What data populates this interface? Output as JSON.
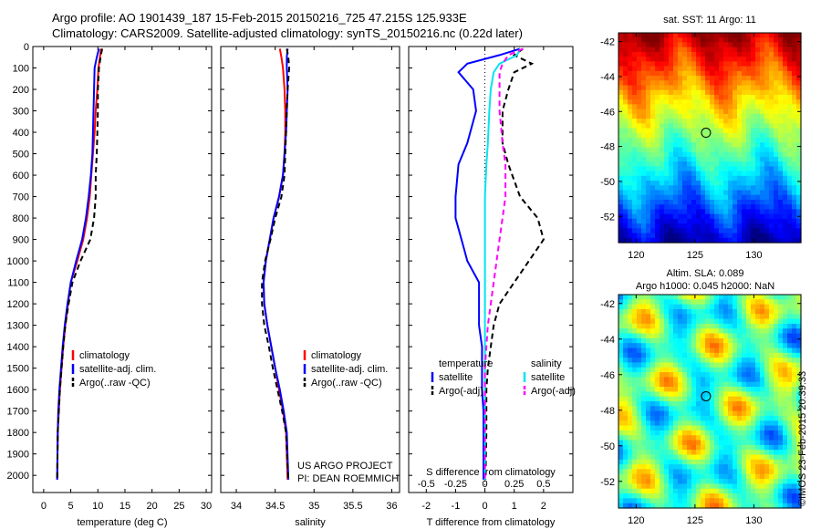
{
  "header": {
    "title_line1": "Argo profile: AO 1901439_187 15-Feb-2015 20150216_725 47.215S 125.933E",
    "title_line2": "Climatology: CARS2009. Satellite-adjusted climatology: synTS_20150216.nc (0.22d later)"
  },
  "credit": {
    "project": "US ARGO PROJECT",
    "pi": "PI: DEAN ROEMMICH",
    "imos_stamp": "©IMOS 23-Feb-2015 20:39:33"
  },
  "chart_data": [
    {
      "type": "line",
      "id": "temperature",
      "xlabel": "temperature (deg C)",
      "ylabel": "",
      "xlim": [
        -2,
        31
      ],
      "ylim": [
        2080,
        0
      ],
      "x_ticks": [
        "0",
        "5",
        "10",
        "15",
        "20",
        "25",
        "30"
      ],
      "y_ticks": [
        "0",
        "100",
        "200",
        "300",
        "400",
        "500",
        "600",
        "700",
        "800",
        "900",
        "1000",
        "1100",
        "1200",
        "1300",
        "1400",
        "1500",
        "1600",
        "1700",
        "1800",
        "1900",
        "2000"
      ],
      "legend": [
        "climatology",
        "satellite-adj. clim.",
        "Argo(..raw -QC)"
      ],
      "series": [
        {
          "name": "climatology",
          "color": "#ff0000",
          "style": "solid",
          "x": [
            10.6,
            10.4,
            10.1,
            9.9,
            9.6,
            9.4,
            9.1,
            8.8,
            8.5,
            8.0,
            7.3,
            6.2,
            5.0,
            4.5,
            4.0,
            3.6,
            3.3,
            3.0,
            2.8,
            2.6,
            2.5
          ],
          "y": [
            10,
            50,
            100,
            200,
            300,
            400,
            500,
            600,
            700,
            800,
            900,
            1000,
            1100,
            1200,
            1300,
            1400,
            1500,
            1600,
            1700,
            1800,
            2020
          ]
        },
        {
          "name": "satellite-adj. clim.",
          "color": "#0000ff",
          "style": "solid",
          "x": [
            10.2,
            9.8,
            9.4,
            9.3,
            9.2,
            9.1,
            9.0,
            8.7,
            8.3,
            7.8,
            7.1,
            6.0,
            5.0,
            4.4,
            3.9,
            3.5,
            3.2,
            2.9,
            2.7,
            2.6,
            2.5
          ],
          "y": [
            10,
            50,
            100,
            200,
            300,
            400,
            500,
            600,
            700,
            800,
            900,
            1000,
            1100,
            1200,
            1300,
            1400,
            1500,
            1600,
            1700,
            1800,
            2020
          ]
        },
        {
          "name": "Argo(..raw -QC)",
          "color": "#000000",
          "style": "dashed",
          "x": [
            10.8,
            10.5,
            10.2,
            10.0,
            10.0,
            9.9,
            9.8,
            9.6,
            9.6,
            9.3,
            8.6,
            6.8,
            5.3,
            4.6,
            4.0,
            3.6,
            3.3,
            3.0,
            2.8,
            2.6,
            2.5
          ],
          "y": [
            10,
            50,
            100,
            200,
            300,
            400,
            500,
            600,
            700,
            800,
            900,
            1000,
            1100,
            1200,
            1300,
            1400,
            1500,
            1600,
            1700,
            1800,
            2020
          ]
        }
      ]
    },
    {
      "type": "line",
      "id": "salinity",
      "xlabel": "salinity",
      "xlim": [
        33.8,
        36.1
      ],
      "ylim": [
        2080,
        0
      ],
      "x_ticks": [
        "34",
        "34.5",
        "35",
        "35.5",
        "36"
      ],
      "legend": [
        "climatology",
        "satellite-adj. clim.",
        "Argo(..raw -QC)"
      ],
      "series": [
        {
          "name": "climatology",
          "color": "#ff0000",
          "style": "solid",
          "x": [
            34.56,
            34.58,
            34.6,
            34.62,
            34.63,
            34.63,
            34.62,
            34.6,
            34.55,
            34.48,
            34.43,
            34.38,
            34.35,
            34.36,
            34.4,
            34.45,
            34.5,
            34.55,
            34.6,
            34.64,
            34.66
          ],
          "y": [
            10,
            50,
            100,
            200,
            300,
            400,
            500,
            600,
            700,
            800,
            900,
            1000,
            1100,
            1200,
            1300,
            1400,
            1500,
            1600,
            1700,
            1800,
            2020
          ]
        },
        {
          "name": "satellite-adj. clim.",
          "color": "#0000ff",
          "style": "solid",
          "x": [
            34.66,
            34.65,
            34.65,
            34.66,
            34.65,
            34.64,
            34.62,
            34.6,
            34.55,
            34.48,
            34.43,
            34.38,
            34.35,
            34.36,
            34.4,
            34.45,
            34.5,
            34.56,
            34.61,
            34.65,
            34.67
          ],
          "y": [
            10,
            50,
            100,
            200,
            300,
            400,
            500,
            600,
            700,
            800,
            900,
            1000,
            1100,
            1200,
            1300,
            1400,
            1500,
            1600,
            1700,
            1800,
            2020
          ]
        },
        {
          "name": "Argo(..raw -QC)",
          "color": "#000000",
          "style": "dashed",
          "x": [
            34.65,
            34.67,
            34.68,
            34.66,
            34.65,
            34.64,
            34.63,
            34.62,
            34.58,
            34.5,
            34.44,
            34.37,
            34.33,
            34.33,
            34.36,
            34.42,
            34.47,
            34.53,
            34.59,
            34.64,
            34.67
          ],
          "y": [
            10,
            50,
            100,
            200,
            300,
            400,
            500,
            600,
            700,
            800,
            900,
            1000,
            1100,
            1200,
            1300,
            1400,
            1500,
            1600,
            1700,
            1800,
            2020
          ]
        }
      ]
    },
    {
      "type": "line",
      "id": "differences",
      "xlabel": "T difference from climatology",
      "xlabel_top": "S difference from climatology",
      "xlim": [
        -2.6,
        3.0
      ],
      "ylim": [
        2080,
        0
      ],
      "x_ticks": [
        "-2",
        "-1",
        "0",
        "1",
        "2"
      ],
      "x_ticks_top": [
        "-0.5",
        "-0.25",
        "0",
        "0.25",
        "0.5"
      ],
      "legend_titles": [
        "temperature",
        "salinity"
      ],
      "legend": [
        "satellite",
        "Argo(-adj)",
        "satellite",
        "Argo(-adj)"
      ],
      "series": [
        {
          "name": "satellite",
          "group": "temperature",
          "color": "#0000ff",
          "style": "solid",
          "x": [
            1.2,
            0.5,
            -0.6,
            -0.9,
            -0.4,
            -0.3,
            -0.6,
            -0.9,
            -1.0,
            -1.0,
            -0.8,
            -0.6,
            -0.2,
            -0.2,
            -0.2,
            -0.1,
            -0.1,
            -0.1,
            -0.05,
            -0.05,
            -0.05
          ],
          "y": [
            10,
            40,
            80,
            120,
            200,
            300,
            450,
            550,
            700,
            800,
            900,
            1000,
            1100,
            1200,
            1300,
            1400,
            1500,
            1600,
            1700,
            1800,
            2020
          ]
        },
        {
          "name": "Argo(-adj)",
          "group": "temperature",
          "color": "#000000",
          "style": "dashed",
          "x": [
            1.3,
            1.0,
            1.6,
            1.0,
            0.8,
            0.6,
            0.6,
            0.8,
            1.2,
            1.8,
            2.0,
            1.5,
            1.0,
            0.5,
            0.3,
            0.2,
            0.1,
            0.05,
            0.05,
            0.05,
            0.02
          ],
          "y": [
            10,
            40,
            80,
            120,
            200,
            300,
            450,
            550,
            700,
            800,
            900,
            1000,
            1100,
            1200,
            1300,
            1400,
            1500,
            1600,
            1700,
            1800,
            2020
          ]
        },
        {
          "name": "satellite",
          "group": "salinity",
          "color": "#00e5ee",
          "style": "solid",
          "x": [
            1.2,
            1.1,
            0.5,
            0.3,
            0.2,
            0.15,
            0.1,
            0.05,
            0.0,
            0.0,
            0.0,
            0.0,
            0.0,
            0.0,
            0.0,
            0.0,
            0.0,
            0.0,
            0.0,
            0.0,
            0.0
          ],
          "y": [
            10,
            40,
            80,
            120,
            200,
            300,
            450,
            550,
            700,
            800,
            900,
            1000,
            1100,
            1200,
            1300,
            1400,
            1500,
            1600,
            1700,
            1800,
            2020
          ]
        },
        {
          "name": "Argo(-adj)",
          "group": "salinity",
          "color": "#ff00ff",
          "style": "dashed",
          "x": [
            1.3,
            0.8,
            0.6,
            0.5,
            0.5,
            0.5,
            0.6,
            0.7,
            0.7,
            0.6,
            0.5,
            0.4,
            0.3,
            0.2,
            0.1,
            0.05,
            0.0,
            0.0,
            0.0,
            0.0,
            0.0
          ],
          "y": [
            10,
            40,
            80,
            120,
            200,
            300,
            450,
            550,
            700,
            800,
            900,
            1000,
            1100,
            1200,
            1300,
            1400,
            1500,
            1600,
            1700,
            1800,
            2020
          ]
        }
      ]
    },
    {
      "type": "heatmap",
      "id": "sst_map",
      "title": "sat. SST: 11 Argo: 11",
      "xlim": [
        118.5,
        134
      ],
      "ylim": [
        -53.5,
        -41.5
      ],
      "x_ticks": [
        "120",
        "125",
        "130"
      ],
      "y_ticks": [
        "-42",
        "-44",
        "-46",
        "-48",
        "-50",
        "-52"
      ],
      "marker": {
        "lon": 125.933,
        "lat": -47.215
      },
      "colormap": "jet"
    },
    {
      "type": "heatmap",
      "id": "sla_map",
      "title": "Altim. SLA: 0.089",
      "subtitle": "Argo h1000: 0.045 h2000: NaN",
      "xlim": [
        118.5,
        134
      ],
      "ylim": [
        -53.5,
        -41.5
      ],
      "x_ticks": [
        "120",
        "125",
        "130"
      ],
      "y_ticks": [
        "-42",
        "-44",
        "-46",
        "-48",
        "-50",
        "-52"
      ],
      "marker": {
        "lon": 125.933,
        "lat": -47.215
      },
      "colormap": "jet"
    }
  ]
}
